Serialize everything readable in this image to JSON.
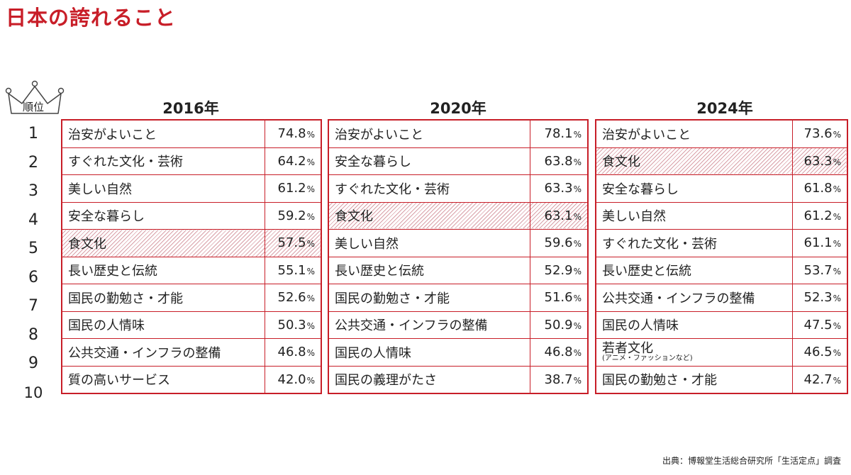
{
  "title": "日本の誇れること",
  "rank_header": "順位",
  "ranks": [
    "1",
    "2",
    "3",
    "4",
    "5",
    "6",
    "7",
    "8",
    "9",
    "10"
  ],
  "pct_unit": "%",
  "highlight_color": "#c81e28",
  "chart_data": [
    {
      "type": "table",
      "year": "2016年",
      "rows": [
        {
          "item": "治安がよいこと",
          "value": "74.8"
        },
        {
          "item": "すぐれた文化・芸術",
          "value": "64.2"
        },
        {
          "item": "美しい自然",
          "value": "61.2"
        },
        {
          "item": "安全な暮らし",
          "value": "59.2"
        },
        {
          "item": "食文化",
          "value": "57.5",
          "highlight": true
        },
        {
          "item": "長い歴史と伝統",
          "value": "55.1"
        },
        {
          "item": "国民の勤勉さ・才能",
          "value": "52.6"
        },
        {
          "item": "国民の人情味",
          "value": "50.3"
        },
        {
          "item": "公共交通・インフラの整備",
          "value": "46.8"
        },
        {
          "item": "質の高いサービス",
          "value": "42.0"
        }
      ]
    },
    {
      "type": "table",
      "year": "2020年",
      "rows": [
        {
          "item": "治安がよいこと",
          "value": "78.1"
        },
        {
          "item": "安全な暮らし",
          "value": "63.8"
        },
        {
          "item": "すぐれた文化・芸術",
          "value": "63.3"
        },
        {
          "item": "食文化",
          "value": "63.1",
          "highlight": true
        },
        {
          "item": "美しい自然",
          "value": "59.6"
        },
        {
          "item": "長い歴史と伝統",
          "value": "52.9"
        },
        {
          "item": "国民の勤勉さ・才能",
          "value": "51.6"
        },
        {
          "item": "公共交通・インフラの整備",
          "value": "50.9"
        },
        {
          "item": "国民の人情味",
          "value": "46.8"
        },
        {
          "item": "国民の義理がたさ",
          "value": "38.7"
        }
      ]
    },
    {
      "type": "table",
      "year": "2024年",
      "rows": [
        {
          "item": "治安がよいこと",
          "value": "73.6"
        },
        {
          "item": "食文化",
          "value": "63.3",
          "highlight": true
        },
        {
          "item": "安全な暮らし",
          "value": "61.8"
        },
        {
          "item": "美しい自然",
          "value": "61.2"
        },
        {
          "item": "すぐれた文化・芸術",
          "value": "61.1"
        },
        {
          "item": "長い歴史と伝統",
          "value": "53.7"
        },
        {
          "item": "公共交通・インフラの整備",
          "value": "52.3"
        },
        {
          "item": "国民の人情味",
          "value": "47.5"
        },
        {
          "item": "若者文化",
          "sub": "(アニメ・ファッションなど)",
          "value": "46.5"
        },
        {
          "item": "国民の勤勉さ・才能",
          "value": "42.7"
        }
      ]
    }
  ],
  "source": "出典：博報堂生活総合研究所「生活定点」調査"
}
